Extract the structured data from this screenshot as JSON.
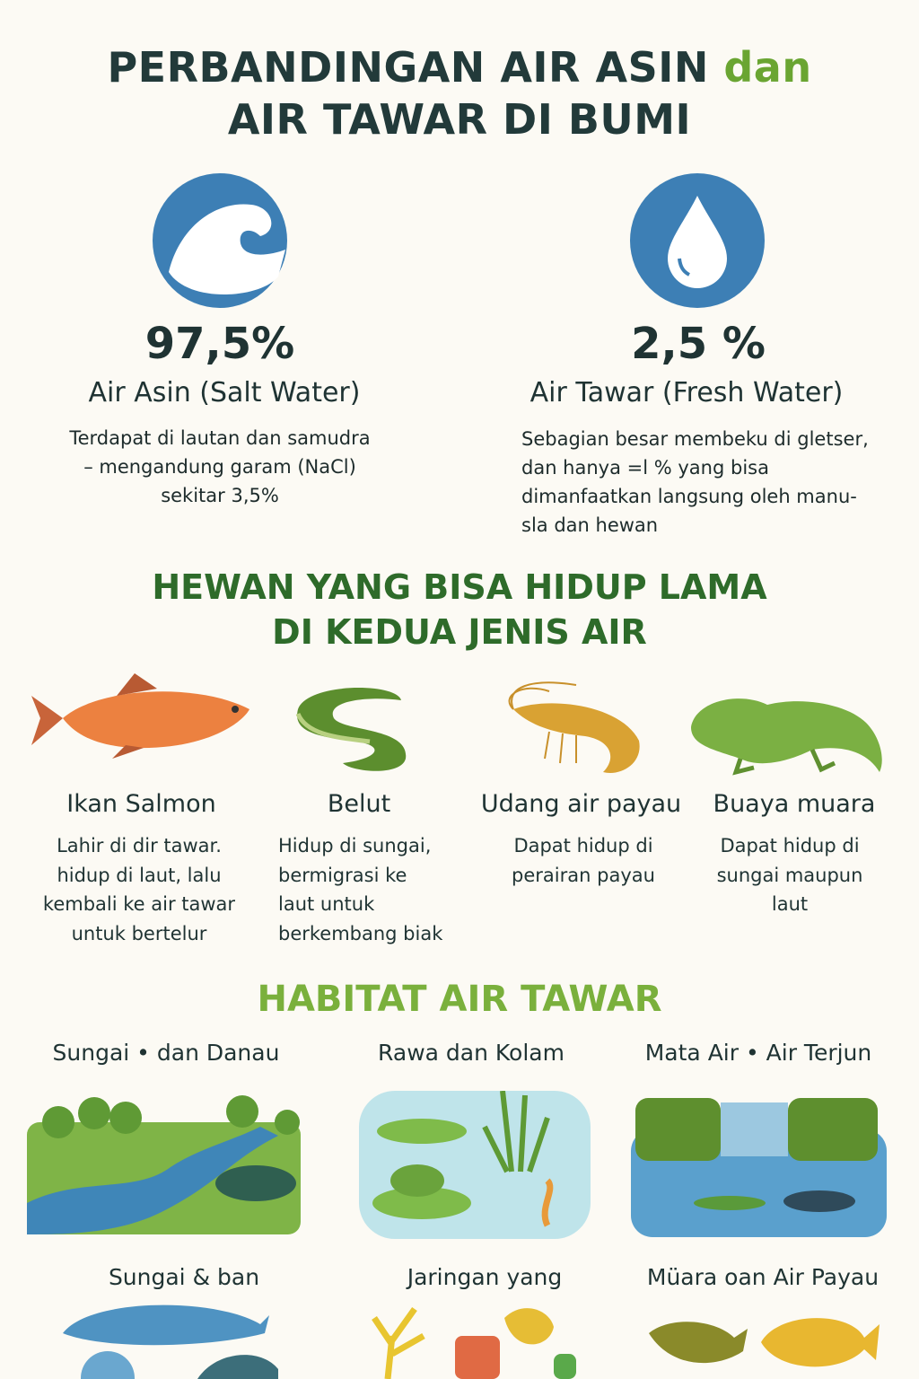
{
  "title": {
    "line1_main": "PERBANDINGAN AIR ASIN",
    "line1_accent": "dan",
    "line2": "AIR TAWAR DI BUMI"
  },
  "colors": {
    "accent_green": "#6aa532",
    "circle_blue": "#3d7fb5",
    "heading_green": "#2e6b2a",
    "habitat_green": "#7ab03c"
  },
  "salt": {
    "icon": "wave-icon",
    "percent": "97,5%",
    "label": "Air Asin (Salt Water)",
    "desc": [
      "Terdapat di lautan dan samudra",
      "– mengandung garam (NaCl)",
      "sekitar 3,5%"
    ]
  },
  "fresh": {
    "icon": "water-drop-icon",
    "percent": "2,5 %",
    "label": "Air Tawar (Fresh Water)",
    "desc": [
      "Sebagian besar membeku di gletser,",
      "dan hanya =l % yang bisa",
      "dimanfaatkan langsung oleh manu-",
      "sla dan hewan"
    ]
  },
  "animals_heading": {
    "line1": "HEWAN YANG BISA HIDUP LAMA",
    "line2": "DI KEDUA JENIS AIR"
  },
  "animals": [
    {
      "name": "Ikan Salmon",
      "icon": "salmon-icon",
      "desc": [
        "Lahir di dir tawar.",
        "hidup di laut, lalu",
        "kembali ke air tawar",
        "untuk bertelur"
      ]
    },
    {
      "name": "Belut",
      "icon": "eel-icon",
      "desc": [
        "Hidup di sungai,",
        "bermigrasi ke",
        "laut untuk",
        "berkembang biak"
      ]
    },
    {
      "name": "Udang air payau",
      "icon": "shrimp-icon",
      "desc": [
        "Dapat hidup di",
        "perairan payau"
      ]
    },
    {
      "name": "Buaya muara",
      "icon": "crocodile-icon",
      "desc": [
        "Dapat hidup di",
        "sungai maupun",
        "laut"
      ]
    }
  ],
  "habitat_heading": "HABITAT AIR TAWAR",
  "habitats": [
    {
      "label": "Sungai • dan Danau",
      "icon": "river-landscape-icon"
    },
    {
      "label": "Rawa dan Kolam",
      "icon": "pond-icon"
    },
    {
      "label": "Mata Air • Air Terjun",
      "icon": "waterfall-icon"
    },
    {
      "label": "Sungai & ban",
      "icon": "dolphin-icon"
    },
    {
      "label": "Jaringan yang",
      "icon": "coral-icon"
    },
    {
      "label": "Müara oan Air Payau",
      "icon": "estuary-fish-icon"
    }
  ]
}
